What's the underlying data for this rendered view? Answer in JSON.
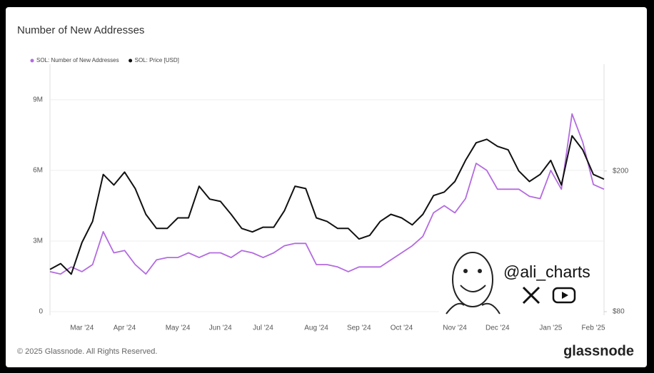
{
  "chart_data": {
    "type": "line",
    "title": "Number of New Addresses",
    "categories": [
      null,
      null,
      null,
      "Mar '24",
      null,
      null,
      null,
      "Apr '24",
      null,
      null,
      null,
      null,
      "May '24",
      null,
      null,
      null,
      "Jun '24",
      null,
      null,
      null,
      "Jul '24",
      null,
      null,
      null,
      null,
      "Aug '24",
      null,
      null,
      null,
      "Sep '24",
      null,
      null,
      null,
      "Oct '24",
      null,
      null,
      null,
      null,
      "Nov '24",
      null,
      null,
      null,
      "Dec '24",
      null,
      null,
      null,
      null,
      "Jan '25",
      null,
      null,
      null,
      "Feb '25",
      null
    ],
    "series": [
      {
        "name": "SOL: Number of New Addresses",
        "color": "#b36be0",
        "axis": "y",
        "values": [
          1700000,
          1600000,
          1900000,
          1700000,
          2000000,
          3400000,
          2500000,
          2600000,
          2000000,
          1600000,
          2200000,
          2300000,
          2300000,
          2500000,
          2300000,
          2500000,
          2500000,
          2300000,
          2600000,
          2500000,
          2300000,
          2500000,
          2800000,
          2900000,
          2900000,
          2000000,
          2000000,
          1900000,
          1700000,
          1900000,
          1900000,
          1900000,
          2200000,
          2500000,
          2800000,
          3200000,
          4200000,
          4500000,
          4200000,
          4800000,
          6300000,
          6000000,
          5200000,
          5200000,
          5200000,
          4900000,
          4800000,
          6000000,
          5200000,
          8400000,
          7200000,
          5400000,
          5200000
        ]
      },
      {
        "name": "SOL: Price [USD]",
        "color": "#111111",
        "axis": "y2",
        "values": [
          116,
          121,
          112,
          139,
          157,
          197,
          188,
          199,
          185,
          163,
          151,
          151,
          160,
          160,
          187,
          176,
          174,
          163,
          151,
          148,
          152,
          152,
          166,
          187,
          185,
          160,
          157,
          151,
          151,
          142,
          145,
          157,
          163,
          160,
          154,
          163,
          179,
          182,
          191,
          209,
          224,
          227,
          221,
          218,
          200,
          191,
          197,
          209,
          188,
          230,
          218,
          197,
          193
        ]
      }
    ],
    "ylim": [
      0,
      10360000
    ],
    "yticks": [
      0,
      {
        "value": 3000000,
        "label": "3M"
      },
      {
        "value": 6000000,
        "label": "6M"
      },
      {
        "value": 9000000,
        "label": "9M"
      }
    ],
    "y2lim": [
      80,
      288
    ],
    "y2ticks": [
      {
        "value": 80,
        "label": "$80"
      },
      {
        "value": 200,
        "label": "$200"
      }
    ],
    "grid": true,
    "legend": "top-left"
  },
  "watermark": "@ali_charts",
  "footer": {
    "copyright": "© 2025 Glassnode. All Rights Reserved.",
    "brand": "glassnode"
  }
}
